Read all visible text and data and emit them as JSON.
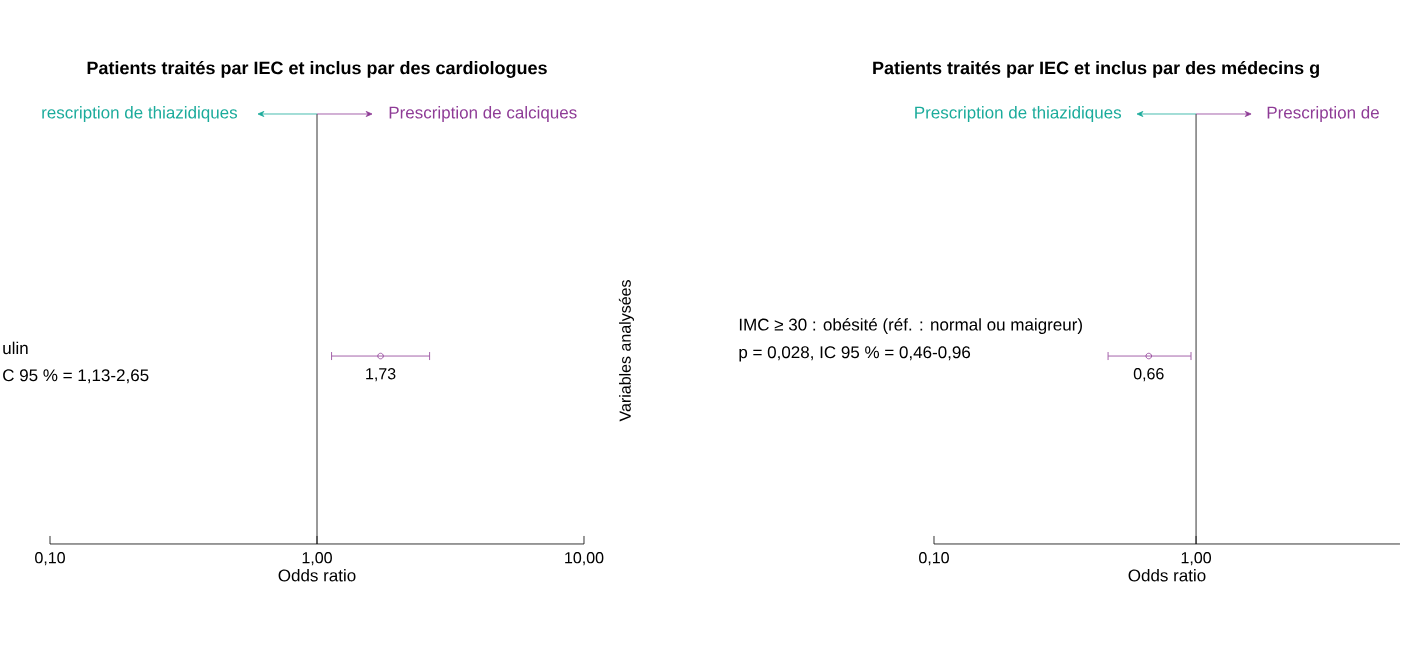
{
  "chart_data": [
    {
      "type": "scatter",
      "orientation": "horizontal",
      "title": "Patients traités par IEC et inclus par des cardiologues",
      "xlabel": "Odds ratio",
      "log": "x",
      "marker": "circle",
      "tick_labels": "x",
      "categories": [
        null
      ],
      "series": [
        {
          "color": "#8e3b96",
          "values": [
            1.73
          ],
          "errors": [
            [
              1.13,
              2.65
            ]
          ],
          "value_labels": [
            "1,73"
          ]
        }
      ],
      "xlim": [
        0.1,
        10
      ],
      "xticks": [
        {
          "value": 0.1,
          "label": "0,10"
        },
        {
          "value": 1,
          "label": "1,00"
        },
        {
          "value": 10,
          "label": "10,00"
        }
      ],
      "ref_lines": [
        {
          "axis": "x",
          "value": 1
        }
      ],
      "annotations": [
        "rescription de thiazidiques",
        "Prescription de calciques",
        "ulin",
        "C 95 % = 1,13-2,65"
      ]
    },
    {
      "type": "scatter",
      "orientation": "horizontal",
      "title": "Patients traités par IEC et inclus par des médecins g",
      "xlabel": "Odds ratio",
      "ylabel": "Variables analysées",
      "log": "x",
      "marker": "circle",
      "tick_labels": "x",
      "categories": [
        null
      ],
      "series": [
        {
          "color": "#8e3b96",
          "values": [
            0.66
          ],
          "errors": [
            [
              0.46,
              0.96
            ]
          ],
          "value_labels": [
            "0,66"
          ]
        }
      ],
      "xlim": [
        0.1,
        6
      ],
      "xticks": [
        {
          "value": 0.1,
          "label": "0,10"
        },
        {
          "value": 1,
          "label": "1,00"
        }
      ],
      "ref_lines": [
        {
          "axis": "x",
          "value": 1
        }
      ],
      "annotations": [
        "Prescription de thiazidiques",
        "Prescription de",
        "IMC ≥ 30 : obésité (réf. : normal ou maigreur)",
        "p = 0,028, IC 95 % = 0,46-0,96"
      ]
    }
  ]
}
